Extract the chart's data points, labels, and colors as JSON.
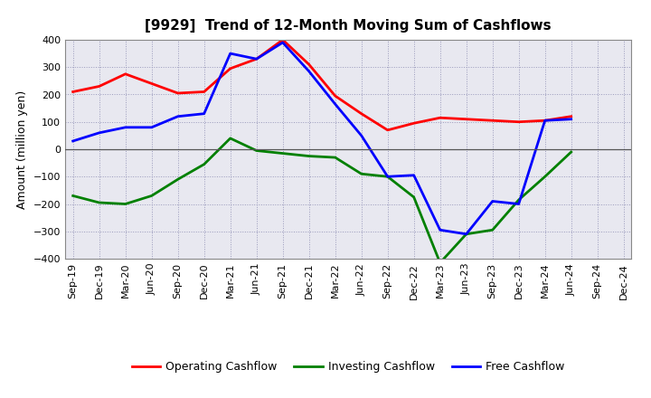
{
  "title": "[9929]  Trend of 12-Month Moving Sum of Cashflows",
  "ylabel": "Amount (million yen)",
  "x_labels": [
    "Sep-19",
    "Dec-19",
    "Mar-20",
    "Jun-20",
    "Sep-20",
    "Dec-20",
    "Mar-21",
    "Jun-21",
    "Sep-21",
    "Dec-21",
    "Mar-22",
    "Jun-22",
    "Sep-22",
    "Dec-22",
    "Mar-23",
    "Jun-23",
    "Sep-23",
    "Dec-23",
    "Mar-24",
    "Jun-24",
    "Sep-24",
    "Dec-24"
  ],
  "operating": [
    210,
    230,
    275,
    240,
    205,
    210,
    295,
    330,
    400,
    310,
    195,
    130,
    70,
    95,
    115,
    110,
    105,
    100,
    105,
    120,
    null,
    null
  ],
  "investing": [
    -170,
    -195,
    -200,
    -170,
    -110,
    -55,
    40,
    -5,
    -15,
    -25,
    -30,
    -90,
    -100,
    -175,
    -415,
    -310,
    -295,
    -185,
    -100,
    -10,
    null,
    null
  ],
  "free": [
    30,
    60,
    80,
    80,
    120,
    130,
    350,
    330,
    390,
    285,
    165,
    50,
    -100,
    -95,
    -295,
    -310,
    -190,
    -200,
    105,
    110,
    null,
    null
  ],
  "operating_color": "#ff0000",
  "investing_color": "#008000",
  "free_color": "#0000ff",
  "ylim": [
    -400,
    400
  ],
  "yticks": [
    -400,
    -300,
    -200,
    -100,
    0,
    100,
    200,
    300,
    400
  ],
  "bg_color": "#ffffff",
  "plot_bg_color": "#e8e8f0",
  "grid_color": "#9999bb",
  "title_fontsize": 11,
  "axis_fontsize": 9,
  "tick_fontsize": 8,
  "legend_fontsize": 9,
  "linewidth": 2.0
}
